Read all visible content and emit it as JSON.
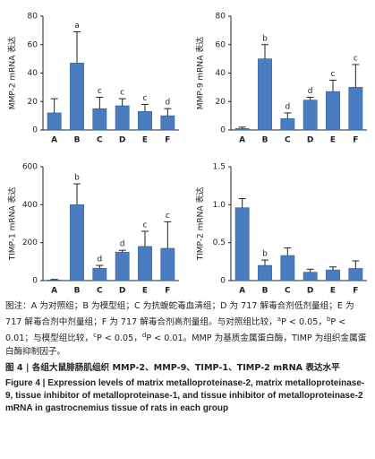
{
  "chart_data": [
    {
      "type": "bar",
      "ylabel": "MMP-2 mRNA 表达",
      "categories": [
        "A",
        "B",
        "C",
        "D",
        "E",
        "F"
      ],
      "values": [
        12,
        47,
        15,
        17,
        13,
        10
      ],
      "errors": [
        10,
        22,
        8,
        5,
        5,
        5
      ],
      "letters": [
        null,
        "a",
        "c",
        "c",
        "c",
        "d"
      ],
      "color": "#4a7cc0",
      "ylim": [
        0,
        80
      ],
      "yticks": [
        0,
        20,
        40,
        60,
        80
      ]
    },
    {
      "type": "bar",
      "ylabel": "MMP-9 mRNA 表达",
      "categories": [
        "A",
        "B",
        "C",
        "D",
        "E",
        "F"
      ],
      "values": [
        1,
        50,
        8,
        21,
        27,
        30
      ],
      "errors": [
        1,
        10,
        4,
        2,
        8,
        16
      ],
      "letters": [
        null,
        "b",
        "d",
        "d",
        "c",
        "c"
      ],
      "color": "#4a7cc0",
      "ylim": [
        0,
        80
      ],
      "yticks": [
        0,
        20,
        40,
        60,
        80
      ]
    },
    {
      "type": "bar",
      "ylabel": "TIMP-1 mRNA 表达",
      "categories": [
        "A",
        "B",
        "C",
        "D",
        "E",
        "F"
      ],
      "values": [
        3,
        400,
        65,
        150,
        180,
        170
      ],
      "errors": [
        3,
        110,
        15,
        10,
        80,
        140
      ],
      "letters": [
        null,
        "b",
        "d",
        "d",
        "c",
        "c"
      ],
      "color": "#4a7cc0",
      "ylim": [
        0,
        600
      ],
      "yticks": [
        0,
        200,
        400,
        600
      ]
    },
    {
      "type": "bar",
      "ylabel": "TIMP-2 mRNA 表达",
      "categories": [
        "A",
        "B",
        "C",
        "D",
        "E",
        "F"
      ],
      "values": [
        0.96,
        0.2,
        0.33,
        0.11,
        0.14,
        0.16
      ],
      "errors": [
        0.12,
        0.07,
        0.1,
        0.04,
        0.04,
        0.1
      ],
      "letters": [
        null,
        "b",
        null,
        null,
        null,
        null
      ],
      "color": "#4a7cc0",
      "ylim": [
        0,
        1.5
      ],
      "yticks": [
        0,
        0.5,
        {
          "value": 1,
          "label": "1.0"
        },
        1.5
      ]
    }
  ],
  "caption": {
    "note_parts": [
      "图注：A 为对照组；B 为模型组；C 为抗蝮蛇毒血清组；D 为 717 解毒合剂低剂量组；E 为 717 解毒合剂中剂量组；F 为 717 解毒合剂高剂量组。与对照组比较，",
      "a",
      "P < 0.05，",
      "b",
      "P < 0.01；与模型组比较，",
      "c",
      "P < 0.05，",
      "d",
      "P < 0.01。MMP 为基质金属蛋白酶，TIMP 为组织金属蛋白酶抑制因子。"
    ],
    "title_cn": "图 4 | 各组大鼠腓肠肌组织 MMP-2、MMP-9、TIMP-1、TIMP-2 mRNA 表达水平",
    "title_en": "Figure 4 | Expression levels of matrix metalloproteinase-2, matrix metalloproteinase-9, tissue inhibitor of metalloproteinase-1, and tissue inhibitor of metalloproteinase-2 mRNA in gastrocnemius tissue of rats in each group"
  }
}
